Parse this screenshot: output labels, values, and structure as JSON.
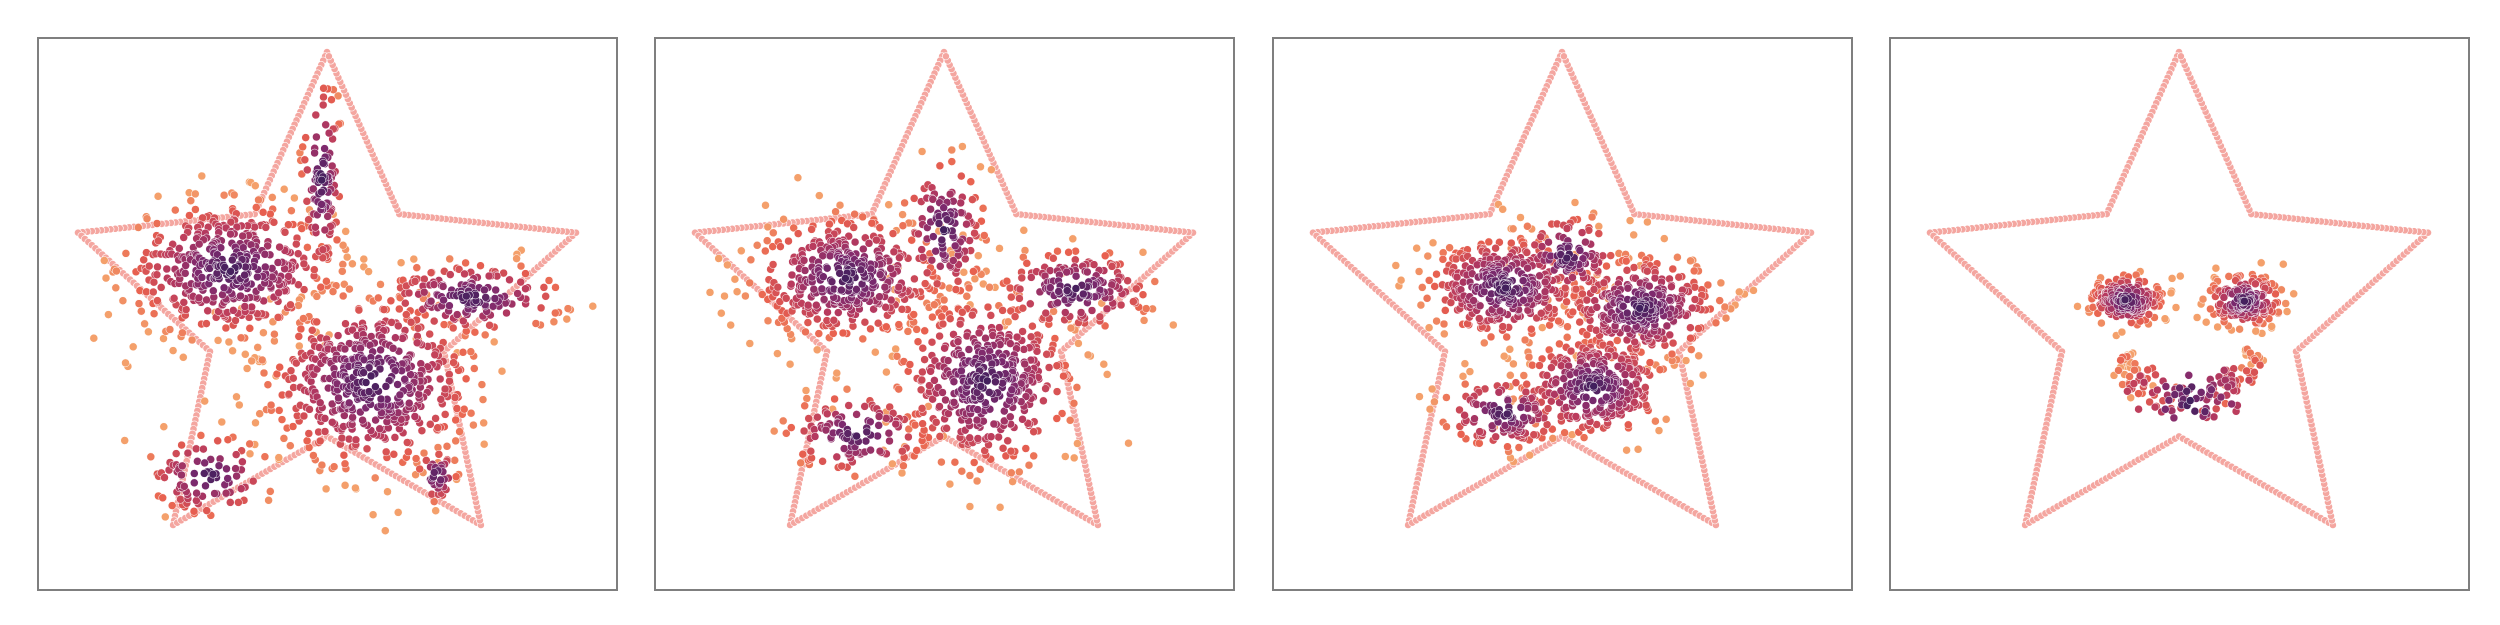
{
  "figure": {
    "background": "#ffffff",
    "frame_color": "#7f7f7f",
    "star_outline_color": "#f4a6a0"
  },
  "chart_data": [
    {
      "type": "scatter",
      "title": "",
      "xlabel": "",
      "ylabel": "",
      "grid": false,
      "xlim": [
        -1.1,
        1.1
      ],
      "ylim": [
        -1.05,
        1.05
      ],
      "colormap": [
        "#fcd8a8",
        "#f4a06b",
        "#e8604f",
        "#b83a5e",
        "#7d2a6e",
        "#3f1f5c"
      ],
      "star_outline": {
        "outer_radius": 1.0,
        "inner_radius": 0.47,
        "points": 5
      },
      "clusters": [
        {
          "center": [
            -0.37,
            0.17
          ],
          "spread": [
            0.2,
            0.13
          ],
          "count": 460
        },
        {
          "center": [
            0.17,
            -0.26
          ],
          "spread": [
            0.2,
            0.17
          ],
          "count": 520
        },
        {
          "center": [
            0.55,
            0.06
          ],
          "spread": [
            0.18,
            0.07
          ],
          "count": 170
        },
        {
          "center": [
            -0.02,
            0.52
          ],
          "spread": [
            0.04,
            0.2
          ],
          "count": 110
        },
        {
          "center": [
            -0.45,
            -0.62
          ],
          "spread": [
            0.12,
            0.08
          ],
          "count": 90
        },
        {
          "center": [
            0.42,
            -0.62
          ],
          "spread": [
            0.04,
            0.05
          ],
          "count": 40
        }
      ]
    },
    {
      "type": "scatter",
      "title": "",
      "xlabel": "",
      "ylabel": "",
      "grid": false,
      "xlim": [
        -1.1,
        1.1
      ],
      "ylim": [
        -1.05,
        1.05
      ],
      "colormap": [
        "#fcd8a8",
        "#f4a06b",
        "#e8604f",
        "#b83a5e",
        "#7d2a6e",
        "#3f1f5c"
      ],
      "star_outline": {
        "outer_radius": 1.0,
        "inner_radius": 0.47,
        "points": 5
      },
      "clusters": [
        {
          "center": [
            -0.37,
            0.14
          ],
          "spread": [
            0.18,
            0.12
          ],
          "count": 420
        },
        {
          "center": [
            0.16,
            -0.26
          ],
          "spread": [
            0.17,
            0.17
          ],
          "count": 440
        },
        {
          "center": [
            0.5,
            0.09
          ],
          "spread": [
            0.15,
            0.08
          ],
          "count": 170
        },
        {
          "center": [
            0.0,
            0.32
          ],
          "spread": [
            0.08,
            0.14
          ],
          "count": 120
        },
        {
          "center": [
            -0.33,
            -0.46
          ],
          "spread": [
            0.14,
            0.08
          ],
          "count": 120
        }
      ]
    },
    {
      "type": "scatter",
      "title": "",
      "xlabel": "",
      "ylabel": "",
      "grid": false,
      "xlim": [
        -1.1,
        1.1
      ],
      "ylim": [
        -1.05,
        1.05
      ],
      "colormap": [
        "#fcd8a8",
        "#f4a06b",
        "#e8604f",
        "#b83a5e",
        "#7d2a6e",
        "#3f1f5c"
      ],
      "star_outline": {
        "outer_radius": 1.0,
        "inner_radius": 0.47,
        "points": 5
      },
      "clusters": [
        {
          "center": [
            -0.22,
            0.1
          ],
          "spread": [
            0.15,
            0.1
          ],
          "count": 360
        },
        {
          "center": [
            0.3,
            0.02
          ],
          "spread": [
            0.15,
            0.1
          ],
          "count": 330
        },
        {
          "center": [
            0.12,
            -0.28
          ],
          "spread": [
            0.14,
            0.1
          ],
          "count": 300
        },
        {
          "center": [
            -0.22,
            -0.38
          ],
          "spread": [
            0.12,
            0.07
          ],
          "count": 130
        },
        {
          "center": [
            0.02,
            0.22
          ],
          "spread": [
            0.1,
            0.08
          ],
          "count": 110
        }
      ]
    },
    {
      "type": "scatter",
      "title": "",
      "xlabel": "",
      "ylabel": "",
      "grid": false,
      "xlim": [
        -1.1,
        1.1
      ],
      "ylim": [
        -1.05,
        1.05
      ],
      "colormap": [
        "#fcd8a8",
        "#f4a06b",
        "#e8604f",
        "#b83a5e",
        "#7d2a6e",
        "#3f1f5c"
      ],
      "star_outline": {
        "outer_radius": 1.0,
        "inner_radius": 0.47,
        "points": 5
      },
      "clusters": [
        {
          "center": [
            -0.2,
            0.05
          ],
          "spread": [
            0.07,
            0.05
          ],
          "count": 180
        },
        {
          "center": [
            0.25,
            0.05
          ],
          "spread": [
            0.07,
            0.05
          ],
          "count": 180
        }
      ],
      "arc": {
        "center": [
          0.03,
          -0.05
        ],
        "radius": 0.28,
        "theta_range_deg": [
          205,
          340
        ],
        "thickness": 0.035,
        "count": 160
      }
    }
  ]
}
